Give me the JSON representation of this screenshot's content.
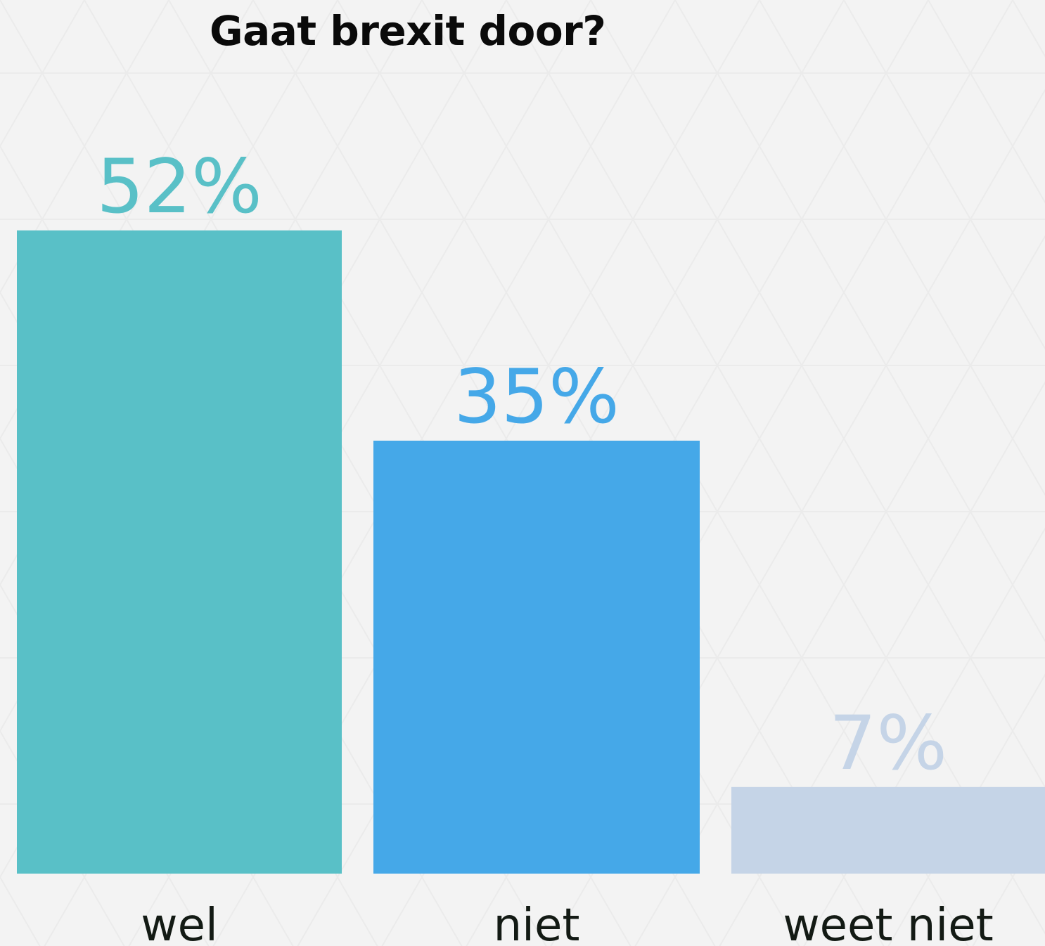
{
  "chart_data": {
    "type": "bar",
    "title": "Gaat brexit door?",
    "categories": [
      "wel",
      "niet",
      "weet niet"
    ],
    "values": [
      52,
      35,
      7
    ],
    "value_labels": [
      "52%",
      "35%",
      "7%"
    ],
    "colors": [
      "#59c0c7",
      "#45a8e8",
      "#c5d4e7"
    ],
    "ylim": [
      0,
      60
    ],
    "grid": false,
    "legend": "none"
  }
}
